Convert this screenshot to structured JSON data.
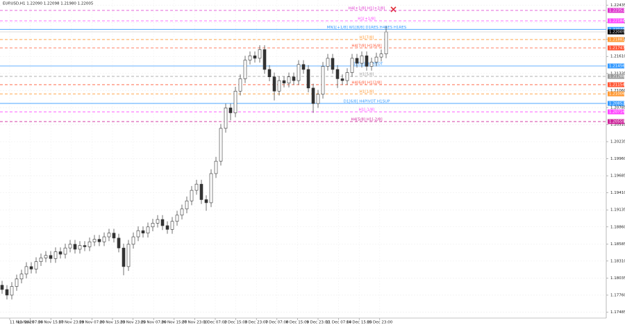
{
  "chart_data": {
    "type": "candlestick",
    "title": "EURUSD,H1  1.22090 1.22098 1.21980 1.22005",
    "categories": [
      "11 Nov 2020",
      "13 Nov 07:00",
      "16 Nov 15:00",
      "17 Nov 23:00",
      "19 Nov 07:00",
      "20 Nov 15:00",
      "23 Nov 23:00",
      "25 Nov 07:00",
      "26 Nov 15:00",
      "27 Nov 23:00",
      "1 Dec 07:00",
      "2 Dec 15:00",
      "3 Dec 23:00",
      "7 Dec 07:00",
      "8 Dec 15:00",
      "9 Dec 23:00",
      "11 Dec 07:00",
      "14 Dec 15:00",
      "15 Dec 23:00"
    ],
    "open": [
      1.1792,
      1.1785,
      1.1776,
      1.179,
      1.1802,
      1.181,
      1.1822,
      1.1818,
      1.183,
      1.1836,
      1.184,
      1.1835,
      1.1846,
      1.1842,
      1.1852,
      1.1858,
      1.185,
      1.1856,
      1.1854,
      1.1862,
      1.1866,
      1.1862,
      1.187,
      1.1876,
      1.1868,
      1.1852,
      1.1822,
      1.1858,
      1.187,
      1.188,
      1.1876,
      1.1886,
      1.1892,
      1.1898,
      1.1888,
      1.1882,
      1.1895,
      1.1905,
      1.1915,
      1.1928,
      1.1945,
      1.1955,
      1.193,
      1.1925,
      1.1972,
      1.1992,
      1.2045,
      1.2078,
      1.207,
      1.2105,
      1.2125,
      1.2155,
      1.2162,
      1.2158,
      1.2172,
      1.214,
      1.2128,
      1.2105,
      1.2122,
      1.2118,
      1.2128,
      1.2122,
      1.2148,
      1.214,
      1.211,
      1.2085,
      1.21,
      1.2145,
      1.2158,
      1.214,
      1.2125,
      1.2122,
      1.2135,
      1.2158,
      1.215,
      1.2162,
      1.2145,
      1.2152,
      1.216,
      1.2165
    ],
    "high": [
      1.1799,
      1.1792,
      1.1797,
      1.1809,
      1.1817,
      1.1829,
      1.1829,
      1.1837,
      1.1843,
      1.1847,
      1.1847,
      1.1853,
      1.1853,
      1.1859,
      1.1865,
      1.1865,
      1.1863,
      1.1863,
      1.1869,
      1.1873,
      1.1873,
      1.1877,
      1.1883,
      1.1883,
      1.1875,
      1.1859,
      1.1865,
      1.1877,
      1.1887,
      1.1887,
      1.1893,
      1.1899,
      1.1905,
      1.1905,
      1.1895,
      1.1902,
      1.1912,
      1.1922,
      1.1935,
      1.1952,
      1.1962,
      1.1962,
      1.1937,
      1.1979,
      1.1999,
      1.2052,
      1.2085,
      1.2085,
      1.2112,
      1.2132,
      1.2162,
      1.2169,
      1.2169,
      1.2179,
      1.2179,
      1.2147,
      1.2135,
      1.2129,
      1.2129,
      1.2135,
      1.2135,
      1.2155,
      1.2155,
      1.2147,
      1.2117,
      1.2107,
      1.2152,
      1.2165,
      1.2165,
      1.2147,
      1.2132,
      1.2142,
      1.2165,
      1.2165,
      1.2169,
      1.2169,
      1.2159,
      1.2167,
      1.2172,
      1.22098
    ],
    "low": [
      1.1778,
      1.1769,
      1.1769,
      1.1783,
      1.1795,
      1.1803,
      1.1811,
      1.1811,
      1.1823,
      1.1829,
      1.1828,
      1.1828,
      1.1835,
      1.1835,
      1.1845,
      1.1843,
      1.1843,
      1.1847,
      1.1847,
      1.1855,
      1.1855,
      1.1855,
      1.1863,
      1.1861,
      1.1845,
      1.1808,
      1.1815,
      1.1851,
      1.1863,
      1.1869,
      1.1869,
      1.1879,
      1.1885,
      1.1881,
      1.1875,
      1.1875,
      1.1888,
      1.1898,
      1.1908,
      1.1921,
      1.1938,
      1.1923,
      1.1912,
      1.1918,
      1.1965,
      1.1985,
      1.2038,
      1.2058,
      1.2063,
      1.2098,
      1.2118,
      1.2148,
      1.2151,
      1.2151,
      1.2133,
      1.2121,
      1.209,
      1.2098,
      1.2111,
      1.2111,
      1.2115,
      1.2115,
      1.2133,
      1.2103,
      1.207,
      1.2078,
      1.2093,
      1.2138,
      1.2133,
      1.211,
      1.2115,
      1.2115,
      1.2128,
      1.2143,
      1.2143,
      1.2138,
      1.2138,
      1.2145,
      1.2153,
      1.2158
    ],
    "close": [
      1.1785,
      1.1776,
      1.179,
      1.1802,
      1.181,
      1.1822,
      1.1818,
      1.183,
      1.1836,
      1.184,
      1.1835,
      1.1846,
      1.1842,
      1.1852,
      1.1858,
      1.185,
      1.1856,
      1.1854,
      1.1862,
      1.1866,
      1.1862,
      1.187,
      1.1876,
      1.1868,
      1.1852,
      1.1822,
      1.1858,
      1.187,
      1.188,
      1.1876,
      1.1886,
      1.1892,
      1.1898,
      1.1888,
      1.1882,
      1.1895,
      1.1905,
      1.1915,
      1.1928,
      1.1945,
      1.1955,
      1.193,
      1.1925,
      1.1972,
      1.1992,
      1.2045,
      1.2078,
      1.207,
      1.2105,
      1.2125,
      1.2155,
      1.2162,
      1.2158,
      1.2172,
      1.214,
      1.2128,
      1.2105,
      1.2122,
      1.2118,
      1.2128,
      1.2122,
      1.2148,
      1.214,
      1.211,
      1.2085,
      1.21,
      1.2145,
      1.2158,
      1.214,
      1.2125,
      1.2122,
      1.2135,
      1.2158,
      1.215,
      1.2162,
      1.2145,
      1.2152,
      1.216,
      1.2165,
      1.22005
    ],
    "color": "#333333",
    "ylim": [
      1.1739,
      1.2252
    ],
    "yticks": [
      {
        "value": 1.17485,
        "label": "1.17485"
      },
      {
        "value": 1.1776,
        "label": "1.17760"
      },
      {
        "value": 1.18035,
        "label": "1.18035"
      },
      {
        "value": 1.1831,
        "label": "1.18310"
      },
      {
        "value": 1.18585,
        "label": "1.18585"
      },
      {
        "value": 1.1886,
        "label": "1.18860"
      },
      {
        "value": 1.19135,
        "label": "1.19135"
      },
      {
        "value": 1.1941,
        "label": "1.19410"
      },
      {
        "value": 1.19685,
        "label": "1.19685"
      },
      {
        "value": 1.1996,
        "label": "1.19960"
      },
      {
        "value": 1.20235,
        "label": "1.20235"
      },
      {
        "value": 1.2051,
        "label": "1.20510"
      },
      {
        "value": 1.20785,
        "label": "1.20785"
      },
      {
        "value": 1.2106,
        "label": "1.21060"
      },
      {
        "value": 1.21335,
        "label": "1.21335"
      },
      {
        "value": 1.2161,
        "label": "1.21610"
      },
      {
        "value": 1.21885,
        "label": "1.21885"
      },
      {
        "value": 1.2216,
        "label": "1.22160"
      },
      {
        "value": 1.22435,
        "label": "1.22435"
      }
    ],
    "grid": true,
    "current_price": 1.22005,
    "levels": [
      {
        "name": "H4[+1/8] H1[+2/8]",
        "price": 1.22352,
        "color": "#dd33cc",
        "dashed": true
      },
      {
        "name": "H1[+1/8]",
        "price": 1.22184,
        "color": "#ff44ff",
        "dashed": true
      },
      {
        "name": "MN1[+1/8] W1[8/8] D1RES H4RES H1RES",
        "price": 1.22046,
        "color": "#3399ff",
        "dashed": false
      },
      {
        "name": "H1[7/8]",
        "price": 1.21882,
        "color": "#ff9933",
        "dashed": true
      },
      {
        "name": "H4[7/8] H1[6/8]",
        "price": 1.21747,
        "color": "#ff5533",
        "dashed": true
      },
      {
        "name": "H1[5/8]",
        "price": 1.21288,
        "color": "#999999",
        "dashed": true
      },
      {
        "name": "D1[7/8] H4PIVOT",
        "price": 1.21456,
        "color": "#3399ff",
        "dashed": false
      },
      {
        "name": "H4[6/8] H1[2/8]",
        "price": 1.21154,
        "color": "#ff5533",
        "dashed": true
      },
      {
        "name": "H1[1/8]",
        "price": 1.21006,
        "color": "#ff9933",
        "dashed": true
      },
      {
        "name": "D1[6/8] H4PIVOT H1SUP",
        "price": 1.20852,
        "color": "#3399ff",
        "dashed": false
      },
      {
        "name": "H1[-1/8]",
        "price": 1.20716,
        "color": "#ff44ff",
        "dashed": true
      },
      {
        "name": "H4[5/8] H1[-2/8]",
        "price": 1.20559,
        "color": "#cc2299",
        "dashed": true
      }
    ]
  }
}
